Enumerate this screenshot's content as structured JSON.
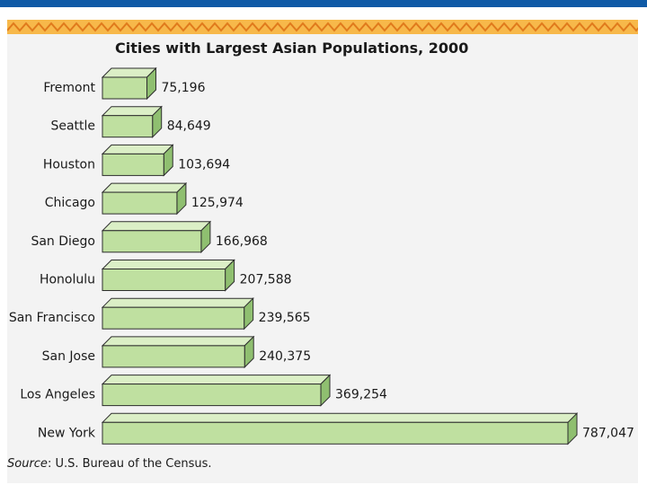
{
  "chart_data": {
    "type": "bar",
    "orientation": "horizontal",
    "title": "Cities with Largest Asian Populations, 2000",
    "categories": [
      "Fremont",
      "Seattle",
      "Houston",
      "Chicago",
      "San Diego",
      "Honolulu",
      "San Francisco",
      "San Jose",
      "Los Angeles",
      "New York"
    ],
    "values": [
      75196,
      84649,
      103694,
      125974,
      166968,
      207588,
      239565,
      240375,
      369254,
      787047
    ],
    "value_labels": [
      "75,196",
      "84,649",
      "103,694",
      "125,974",
      "166,968",
      "207,588",
      "239,565",
      "240,375",
      "369,254",
      "787,047"
    ],
    "xlabel": "",
    "ylabel": "",
    "xlim": [
      0,
      787047
    ],
    "grid": false,
    "legend": "none"
  },
  "source": {
    "label": "Source",
    "text": ": U.S. Bureau of the Census."
  },
  "colors": {
    "header_bar": "#0f5aa6",
    "zigzag_fill": "#f7b84a",
    "zigzag_line": "#e07a1c",
    "bar_face": "#bfe0a0",
    "bar_top": "#dbefc6",
    "bar_side": "#8fbf70",
    "bar_stroke": "#2e2e2e"
  }
}
